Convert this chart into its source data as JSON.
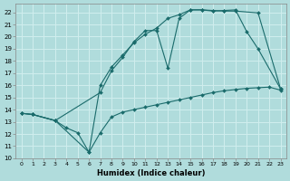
{
  "xlabel": "Humidex (Indice chaleur)",
  "xlim": [
    -0.5,
    23.5
  ],
  "ylim": [
    10,
    22.7
  ],
  "yticks": [
    10,
    11,
    12,
    13,
    14,
    15,
    16,
    17,
    18,
    19,
    20,
    21,
    22
  ],
  "xticks": [
    0,
    1,
    2,
    3,
    4,
    5,
    6,
    7,
    8,
    9,
    10,
    11,
    12,
    13,
    14,
    15,
    16,
    17,
    18,
    19,
    20,
    21,
    22,
    23
  ],
  "bg_color": "#b0dcdc",
  "grid_color": "#d0eeee",
  "line_color": "#1a6b6b",
  "line1_x": [
    0,
    1,
    3,
    4,
    5,
    6,
    7,
    8,
    9,
    10,
    11,
    12,
    13,
    14,
    15,
    16,
    17,
    18,
    19,
    20,
    21,
    22,
    23
  ],
  "line1_y": [
    13.7,
    13.6,
    13.1,
    12.5,
    12.1,
    10.5,
    12.1,
    13.4,
    13.8,
    14.0,
    14.2,
    14.4,
    14.6,
    14.8,
    15.0,
    15.2,
    15.4,
    15.55,
    15.65,
    15.75,
    15.8,
    15.85,
    15.6
  ],
  "line2_x": [
    0,
    1,
    3,
    6,
    7,
    8,
    9,
    10,
    11,
    12,
    13,
    14,
    15,
    16,
    17,
    18,
    19,
    21,
    23
  ],
  "line2_y": [
    13.7,
    13.6,
    13.1,
    10.5,
    16.0,
    17.5,
    18.5,
    19.5,
    20.2,
    20.7,
    21.5,
    21.8,
    22.2,
    22.2,
    22.15,
    22.1,
    22.1,
    21.95,
    15.7
  ],
  "line3_x": [
    0,
    1,
    3,
    7,
    8,
    9,
    10,
    11,
    12,
    13,
    14,
    15,
    16,
    17,
    18,
    19,
    20,
    21,
    23
  ],
  "line3_y": [
    13.7,
    13.6,
    13.1,
    15.4,
    17.2,
    18.3,
    19.6,
    20.5,
    20.5,
    17.4,
    21.5,
    22.2,
    22.2,
    22.1,
    22.15,
    22.2,
    20.4,
    19.0,
    15.7
  ]
}
